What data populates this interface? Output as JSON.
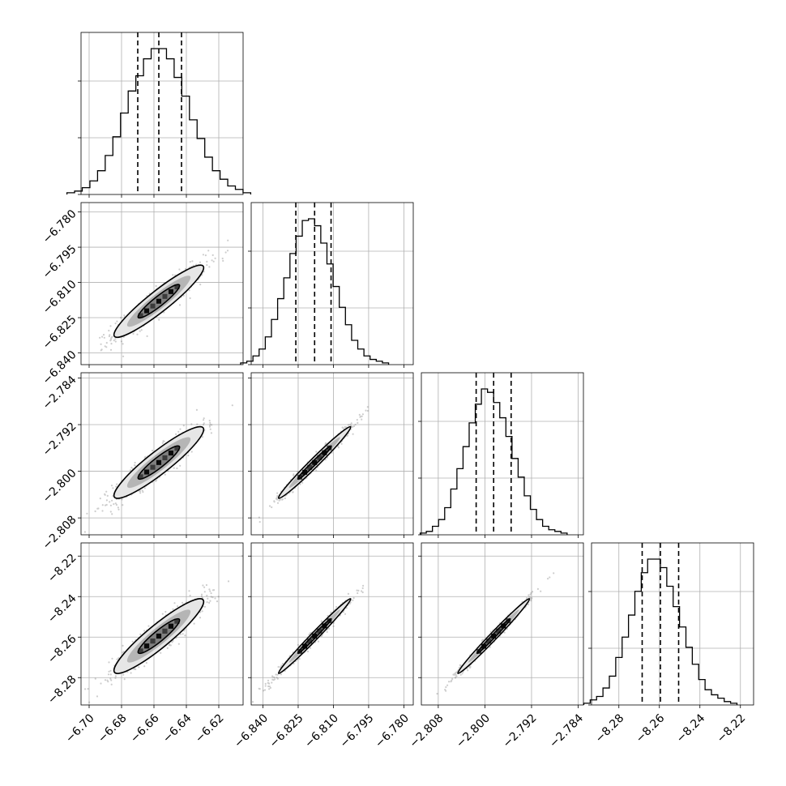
{
  "chart_data": {
    "type": "corner",
    "parameters": [
      {
        "index": 0,
        "median": -6.657,
        "q16": -6.67,
        "q84": -6.643,
        "sigma": 0.0135,
        "lim": [
          -6.705,
          -6.605
        ],
        "ticks": [
          -6.7,
          -6.68,
          -6.66,
          -6.64,
          -6.62
        ],
        "tick_labels": [
          "−6.70",
          "−6.68",
          "−6.66",
          "−6.64",
          "−6.62"
        ]
      },
      {
        "index": 1,
        "median": -6.818,
        "q16": -6.826,
        "q84": -6.811,
        "sigma": 0.0075,
        "lim": [
          -6.845,
          -6.776
        ],
        "ticks": [
          -6.84,
          -6.825,
          -6.81,
          -6.795,
          -6.78
        ],
        "tick_labels": [
          "−6.840",
          "−6.825",
          "−6.810",
          "−6.795",
          "−6.780"
        ]
      },
      {
        "index": 2,
        "median": -2.7985,
        "q16": -2.8015,
        "q84": -2.7955,
        "sigma": 0.003,
        "lim": [
          -2.8109,
          -2.7831
        ],
        "ticks": [
          -2.808,
          -2.8,
          -2.792,
          -2.784
        ],
        "tick_labels": [
          "−2.808",
          "−2.800",
          "−2.792",
          "−2.784"
        ]
      },
      {
        "index": 3,
        "median": -8.2595,
        "q16": -8.2685,
        "q84": -8.2505,
        "sigma": 0.009,
        "lim": [
          -8.2935,
          -8.2135
        ],
        "ticks": [
          -8.28,
          -8.26,
          -8.24,
          -8.22
        ],
        "tick_labels": [
          "−8.28",
          "−8.26",
          "−8.24",
          "−8.22"
        ]
      }
    ],
    "histograms": [
      {
        "param": 0,
        "counts": [
          1,
          2,
          4,
          8,
          14,
          23,
          34,
          48,
          61,
          70,
          80,
          86,
          86,
          80,
          69,
          58,
          44,
          33,
          22,
          14,
          9,
          5,
          3,
          1
        ]
      },
      {
        "param": 1,
        "counts": [
          1,
          2,
          5,
          9,
          16,
          26,
          38,
          50,
          64,
          74,
          83,
          84,
          80,
          70,
          58,
          45,
          33,
          23,
          14,
          9,
          5,
          3,
          2,
          1
        ]
      },
      {
        "param": 2,
        "counts": [
          1,
          2,
          5,
          9,
          16,
          27,
          39,
          52,
          66,
          77,
          86,
          84,
          78,
          69,
          58,
          45,
          34,
          23,
          15,
          9,
          5,
          3,
          2,
          1
        ]
      },
      {
        "param": 3,
        "counts": [
          1,
          3,
          5,
          10,
          17,
          28,
          40,
          53,
          67,
          78,
          86,
          86,
          81,
          70,
          58,
          46,
          34,
          24,
          15,
          9,
          6,
          4,
          2,
          1
        ]
      }
    ],
    "pairs": [
      {
        "x": 1,
        "y": 0,
        "correlation": 0.93
      },
      {
        "x": 2,
        "y": 0,
        "correlation": 0.92
      },
      {
        "x": 2,
        "y": 1,
        "correlation": 0.985
      },
      {
        "x": 3,
        "y": 0,
        "correlation": 0.92
      },
      {
        "x": 3,
        "y": 1,
        "correlation": 0.99
      },
      {
        "x": 3,
        "y": 2,
        "correlation": 0.99
      }
    ],
    "contour_levels": [
      0.39,
      0.86
    ],
    "quantiles": [
      0.16,
      0.5,
      0.84
    ],
    "grid": true
  }
}
